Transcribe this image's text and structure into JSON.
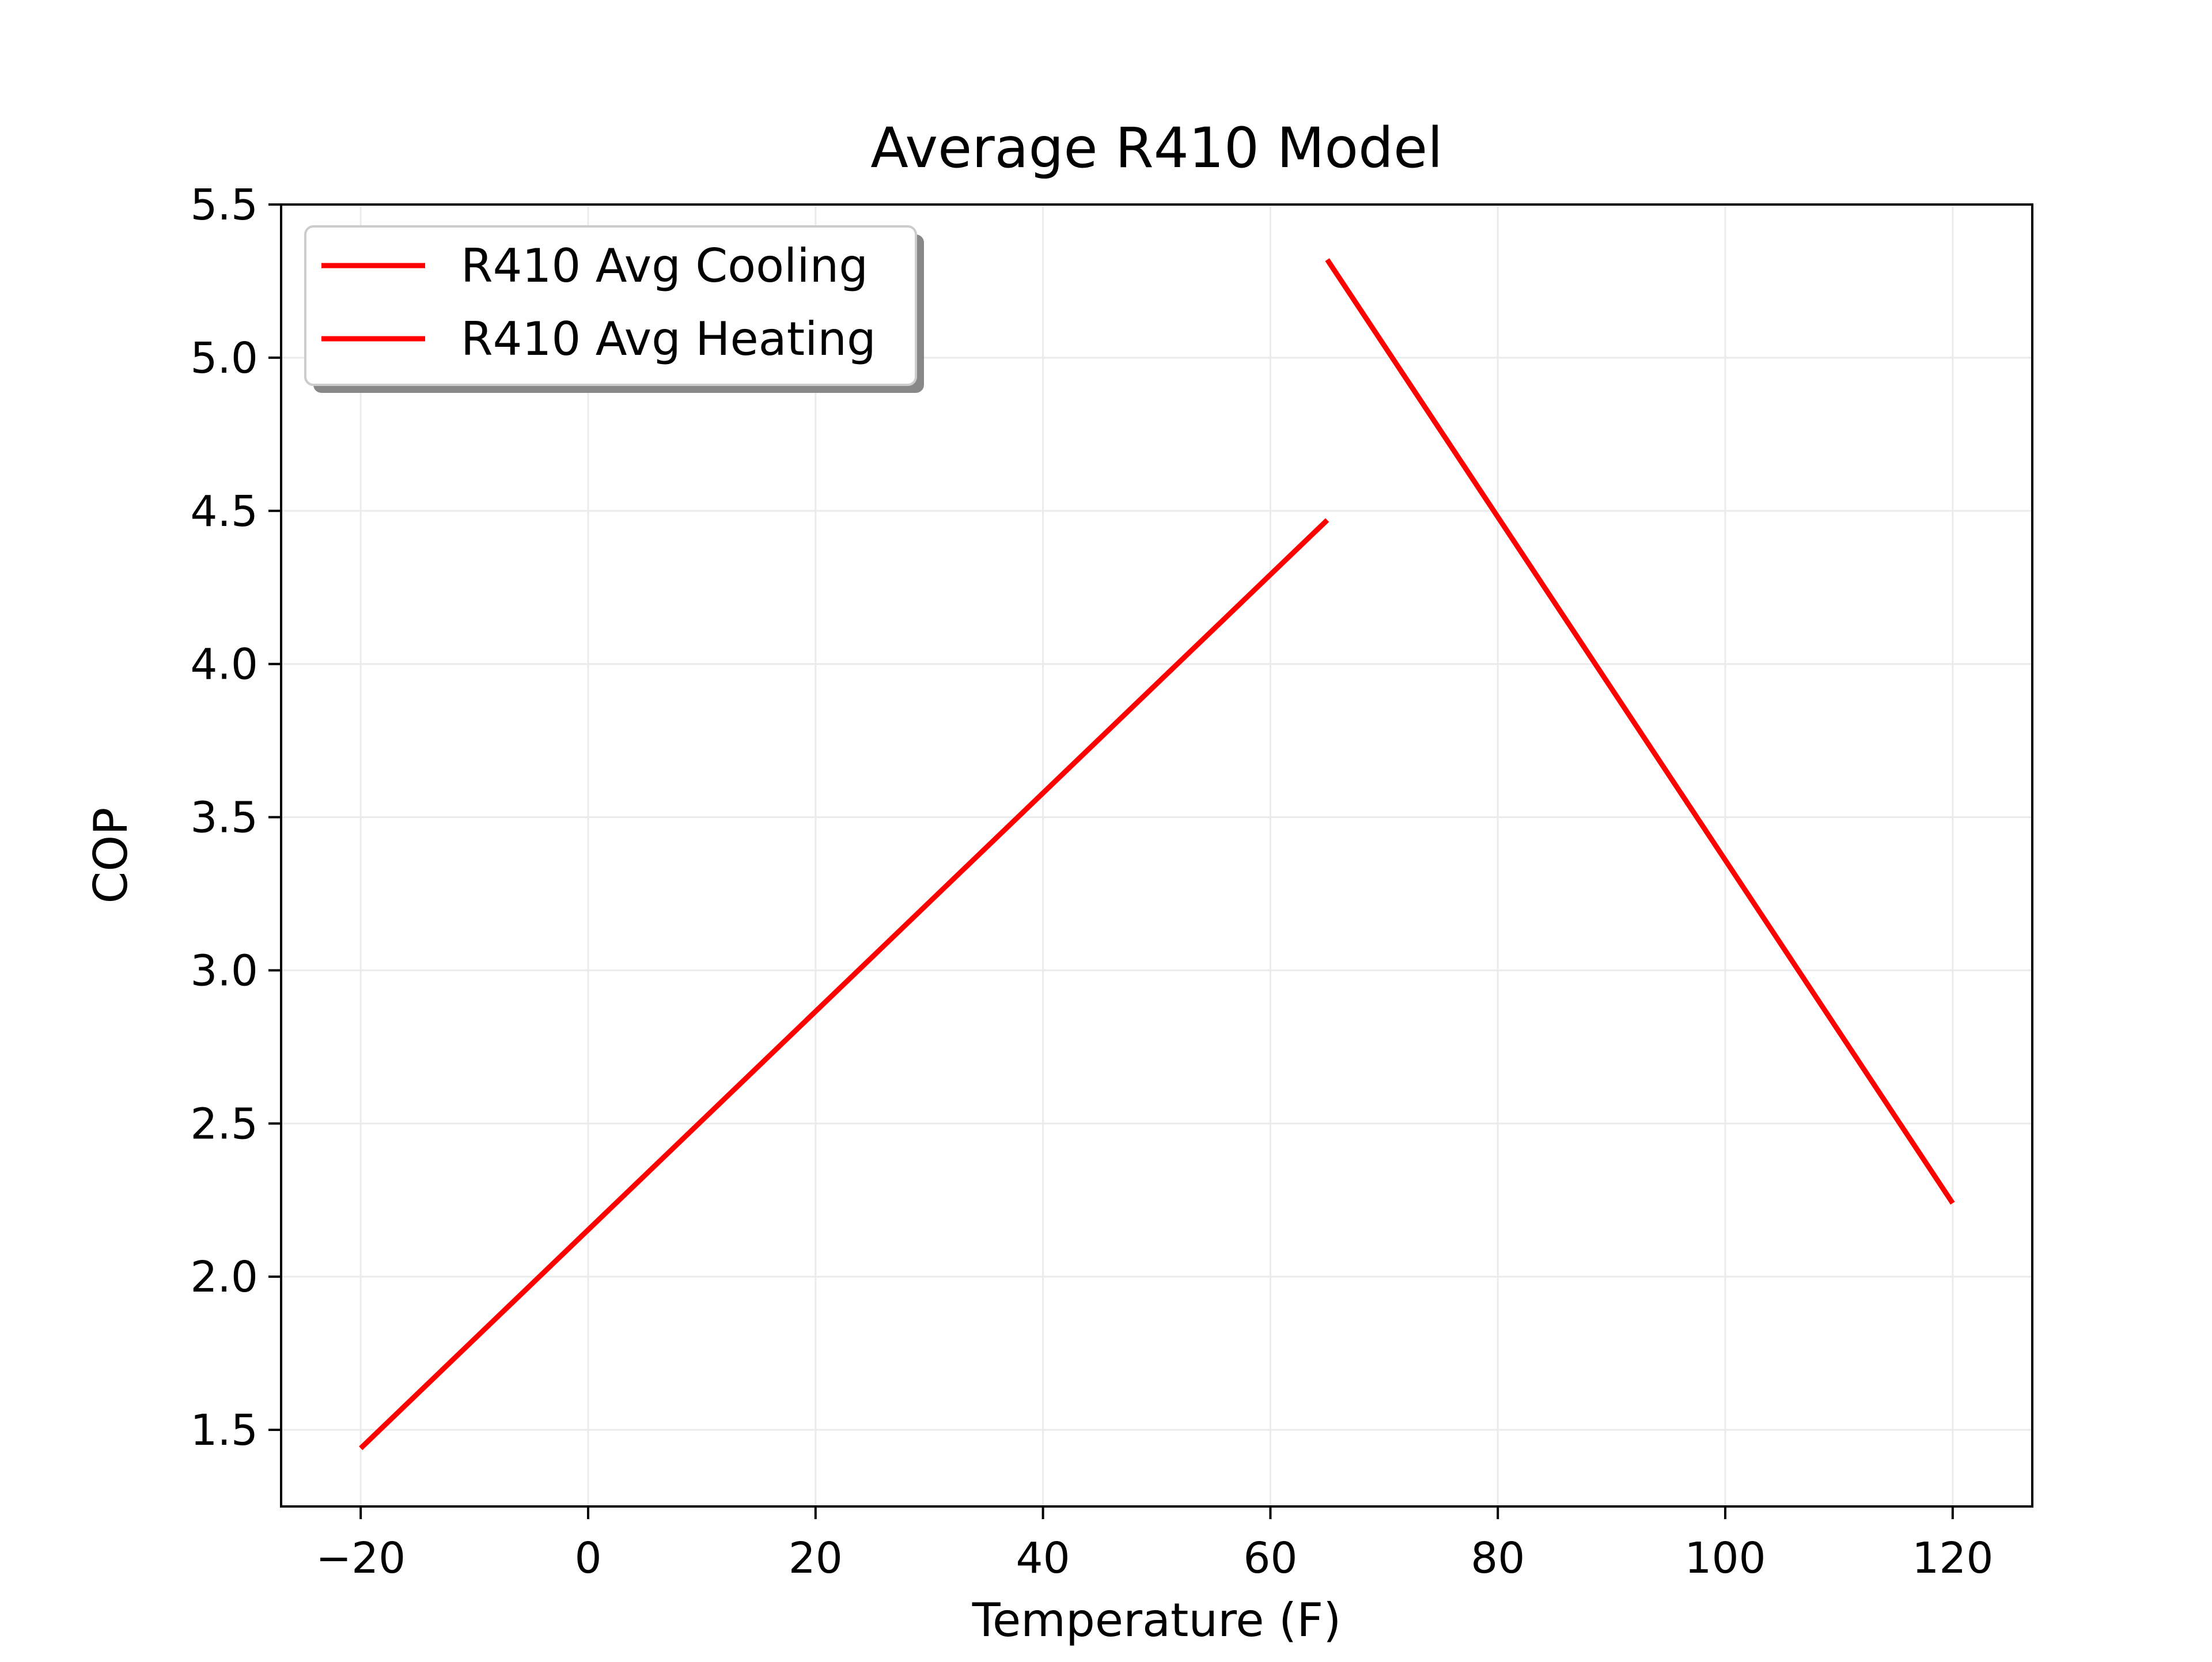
{
  "chart_data": {
    "type": "line",
    "title": "Average R410 Model",
    "xlabel": "Temperature (F)",
    "ylabel": "COP",
    "xlim": [
      -27,
      127
    ],
    "ylim": [
      1.25,
      5.5
    ],
    "xticks": [
      -20,
      0,
      20,
      40,
      60,
      80,
      100,
      120
    ],
    "xtick_labels": [
      "−20",
      "0",
      "20",
      "40",
      "60",
      "80",
      "100",
      "120"
    ],
    "yticks": [
      1.5,
      2.0,
      2.5,
      3.0,
      3.5,
      4.0,
      4.5,
      5.0,
      5.5
    ],
    "ytick_labels": [
      "1.5",
      "2.0",
      "2.5",
      "3.0",
      "3.5",
      "4.0",
      "4.5",
      "5.0",
      "5.5"
    ],
    "grid": true,
    "legend_position": "top-left",
    "series": [
      {
        "name": "R410 Avg Cooling",
        "color": "#ff0000",
        "x": [
          65,
          120
        ],
        "y": [
          5.32,
          2.24
        ]
      },
      {
        "name": "R410 Avg Heating",
        "color": "#ff0000",
        "x": [
          -20,
          65
        ],
        "y": [
          1.44,
          4.47
        ]
      }
    ]
  }
}
